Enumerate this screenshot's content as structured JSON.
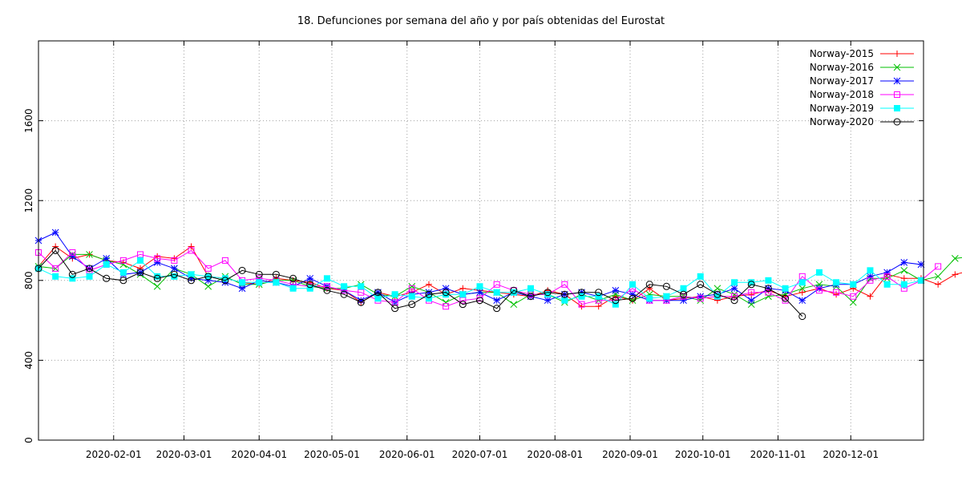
{
  "chart_data": {
    "type": "line",
    "title": "18. Defunciones por semana del año y por país obtenidas del Eurostat",
    "xlabel": "",
    "ylabel": "",
    "x_axis": {
      "type": "date",
      "range": [
        "2020-01-01",
        "2020-12-31"
      ],
      "tick_labels": [
        "2020-02-01",
        "2020-03-01",
        "2020-04-01",
        "2020-05-01",
        "2020-06-01",
        "2020-07-01",
        "2020-08-01",
        "2020-09-01",
        "2020-10-01",
        "2020-11-01",
        "2020-12-01"
      ]
    },
    "y_axis": {
      "range": [
        0,
        2000
      ],
      "ticks": [
        0,
        400,
        800,
        1200,
        1600
      ]
    },
    "grid": true,
    "legend_position": "top-right",
    "week_start": "2020-01-01",
    "series": [
      {
        "name": "Norway-2015",
        "color": "#ff0000",
        "marker": "plus",
        "values": [
          870,
          970,
          910,
          930,
          900,
          890,
          860,
          920,
          910,
          970,
          820,
          810,
          790,
          780,
          810,
          800,
          790,
          760,
          750,
          690,
          740,
          720,
          740,
          780,
          730,
          760,
          750,
          740,
          730,
          720,
          750,
          730,
          670,
          670,
          720,
          700,
          760,
          700,
          710,
          720,
          700,
          720,
          730,
          750,
          720,
          740,
          760,
          730,
          760,
          720,
          830,
          810,
          810,
          780,
          830,
          850
        ]
      },
      {
        "name": "Norway-2016",
        "color": "#00c000",
        "marker": "x",
        "values": [
          870,
          860,
          930,
          930,
          900,
          880,
          830,
          770,
          860,
          830,
          770,
          820,
          780,
          780,
          800,
          800,
          770,
          760,
          760,
          780,
          730,
          720,
          770,
          740,
          690,
          730,
          740,
          740,
          680,
          730,
          730,
          690,
          730,
          700,
          730,
          700,
          730,
          720,
          720,
          700,
          760,
          730,
          680,
          720,
          730,
          760,
          780,
          770,
          690,
          810,
          810,
          850,
          800,
          820,
          910,
          920,
          980
        ]
      },
      {
        "name": "Norway-2017",
        "color": "#0000ff",
        "marker": "asterisk",
        "values": [
          1000,
          1040,
          920,
          860,
          910,
          830,
          840,
          890,
          860,
          810,
          800,
          790,
          760,
          800,
          790,
          770,
          810,
          770,
          750,
          700,
          740,
          690,
          730,
          740,
          760,
          730,
          740,
          700,
          740,
          720,
          700,
          730,
          740,
          720,
          750,
          730,
          700,
          700,
          700,
          720,
          730,
          760,
          700,
          760,
          750,
          700,
          760,
          780,
          780,
          820,
          840,
          890,
          880
        ]
      },
      {
        "name": "Norway-2018",
        "color": "#ff00ff",
        "marker": "square",
        "values": [
          940,
          860,
          940,
          850,
          880,
          900,
          930,
          910,
          900,
          950,
          860,
          900,
          800,
          810,
          800,
          780,
          770,
          770,
          750,
          740,
          700,
          690,
          760,
          700,
          670,
          700,
          710,
          780,
          750,
          730,
          730,
          780,
          680,
          700,
          700,
          760,
          700,
          700,
          720,
          710,
          720,
          720,
          740,
          740,
          700,
          820,
          750,
          740,
          720,
          800,
          820,
          760,
          800,
          870
        ]
      },
      {
        "name": "Norway-2019",
        "color": "#00ffff",
        "marker": "filled-square",
        "values": [
          860,
          820,
          810,
          820,
          880,
          840,
          900,
          820,
          820,
          830,
          820,
          810,
          790,
          790,
          790,
          760,
          760,
          810,
          770,
          770,
          710,
          730,
          720,
          710,
          730,
          730,
          770,
          740,
          740,
          760,
          730,
          700,
          720,
          720,
          680,
          780,
          710,
          720,
          760,
          820,
          720,
          790,
          790,
          800,
          760,
          790,
          840,
          790,
          780,
          850,
          780,
          780,
          800
        ]
      },
      {
        "name": "Norway-2020",
        "color": "#000000",
        "marker": "circle",
        "values": [
          860,
          950,
          830,
          860,
          810,
          800,
          840,
          810,
          830,
          800,
          820,
          800,
          850,
          830,
          830,
          810,
          780,
          750,
          730,
          690,
          740,
          660,
          680,
          730,
          740,
          680,
          700,
          660,
          750,
          720,
          740,
          730,
          740,
          740,
          700,
          710,
          780,
          770,
          730,
          780,
          730,
          700,
          780,
          760,
          710,
          620
        ]
      }
    ]
  }
}
